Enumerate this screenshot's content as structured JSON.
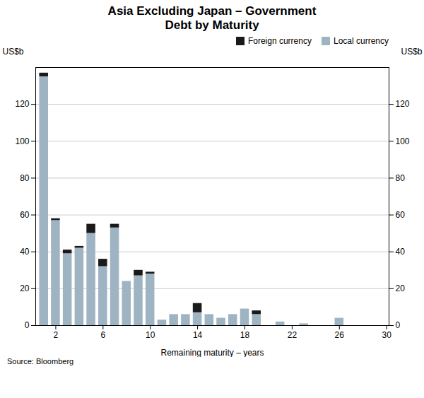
{
  "chart_data": {
    "type": "bar",
    "title": "Asia Excluding Japan – Government\nDebt by Maturity",
    "xlabel": "Remaining maturity – years",
    "ylabel": "US$b",
    "y2label": "US$b",
    "source": "Source: Bloomberg",
    "stacked": true,
    "grid": true,
    "legend": "upper right",
    "x": [
      1,
      2,
      3,
      4,
      5,
      6,
      7,
      8,
      9,
      10,
      11,
      12,
      13,
      14,
      15,
      16,
      17,
      18,
      19,
      20,
      21,
      22,
      23,
      24,
      25,
      26,
      27,
      28,
      29
    ],
    "xlim": [
      0.3,
      30.2
    ],
    "xticks": [
      2,
      6,
      10,
      14,
      18,
      22,
      26,
      30
    ],
    "ylim": [
      0,
      140
    ],
    "yticks": [
      0,
      20,
      40,
      60,
      80,
      100,
      120
    ],
    "y2lim": [
      0,
      140
    ],
    "y2ticks": [
      0,
      20,
      40,
      60,
      80,
      100,
      120
    ],
    "series": [
      {
        "name": "Local currency",
        "color": "#9fb4c3",
        "values": [
          135,
          57,
          39,
          42,
          50,
          32,
          53,
          24,
          27,
          28,
          3,
          6,
          6,
          7,
          6,
          4,
          6,
          9,
          6,
          0,
          2,
          0,
          1,
          0,
          0,
          4,
          0,
          0,
          0
        ]
      },
      {
        "name": "Foreign currency",
        "color": "#1a1a1a",
        "values": [
          2,
          1,
          2,
          1,
          5,
          4,
          2,
          0,
          3,
          1,
          0,
          0,
          0,
          5,
          0,
          0,
          0,
          0,
          2,
          0,
          0,
          0,
          0,
          0,
          0,
          0,
          0,
          0,
          0
        ]
      }
    ]
  }
}
